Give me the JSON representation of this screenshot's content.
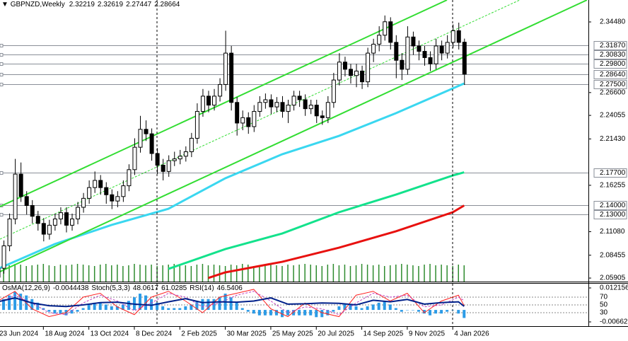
{
  "chart_data": [
    {
      "type": "candlestick",
      "title": "GBPNZD,Weekly",
      "categories": [
        "23 Jun 2024",
        null,
        null,
        null,
        null,
        null,
        null,
        null,
        "18 Aug 2024",
        null,
        null,
        null,
        null,
        null,
        null,
        null,
        "13 Oct 2024",
        null,
        null,
        null,
        null,
        null,
        null,
        null,
        "8 Dec 2024",
        null,
        null,
        null,
        null,
        null,
        null,
        null,
        "2 Feb 2025",
        null,
        null,
        null,
        null,
        null,
        null,
        null,
        "30 Mar 2025",
        null,
        null,
        null,
        null,
        null,
        null,
        null,
        "25 May 2025",
        null,
        null,
        null,
        null,
        null,
        null,
        null,
        "20 Jul 2025",
        null,
        null,
        null,
        null,
        null,
        null,
        null,
        "14 Sep 2025",
        null,
        null,
        null,
        null,
        null,
        null,
        null,
        "9 Nov 2025",
        null,
        null,
        null,
        null,
        null,
        null,
        null,
        "4 Jan 2026",
        null,
        null
      ],
      "open": [
        2.06,
        2.07,
        2.095,
        2.125,
        2.175,
        2.15,
        2.14,
        2.128,
        2.12,
        2.108,
        2.118,
        2.125,
        2.132,
        2.118,
        2.125,
        2.138,
        2.148,
        2.16,
        2.168,
        2.16,
        2.152,
        2.145,
        2.15,
        2.162,
        2.18,
        2.205,
        2.225,
        2.22,
        2.198,
        2.185,
        2.178,
        2.19,
        2.192,
        2.195,
        2.2,
        2.215,
        2.245,
        2.262,
        2.252,
        2.262,
        2.275,
        2.31,
        2.255,
        2.232,
        2.238,
        2.228,
        2.245,
        2.255,
        2.258,
        2.25,
        2.255,
        2.245,
        2.252,
        2.262,
        2.258,
        2.248,
        2.252,
        2.24,
        2.238,
        2.255,
        2.28,
        2.3,
        2.292,
        2.285,
        2.29,
        2.278,
        2.31,
        2.32,
        2.33,
        2.345,
        2.322,
        2.302,
        2.292,
        2.328,
        2.318,
        2.312,
        2.305,
        2.298,
        2.318,
        2.31,
        2.322,
        2.335,
        2.32219
      ],
      "high": [
        2.076,
        2.101,
        2.131,
        2.192,
        2.188,
        2.156,
        2.146,
        2.134,
        2.126,
        2.124,
        2.131,
        2.138,
        2.138,
        2.131,
        2.144,
        2.154,
        2.168,
        2.178,
        2.174,
        2.166,
        2.158,
        2.156,
        2.168,
        2.186,
        2.215,
        2.24,
        2.235,
        2.226,
        2.204,
        2.192,
        2.196,
        2.2,
        2.202,
        2.206,
        2.221,
        2.254,
        2.27,
        2.268,
        2.27,
        2.282,
        2.335,
        2.318,
        2.261,
        2.246,
        2.244,
        2.252,
        2.262,
        2.265,
        2.264,
        2.261,
        2.262,
        2.258,
        2.268,
        2.268,
        2.264,
        2.258,
        2.258,
        2.246,
        2.262,
        2.288,
        2.31,
        2.306,
        2.298,
        2.298,
        2.296,
        2.316,
        2.326,
        2.34,
        2.352,
        2.35,
        2.33,
        2.31,
        2.34,
        2.334,
        2.324,
        2.318,
        2.312,
        2.326,
        2.324,
        2.33,
        2.342,
        2.344,
        2.32619
      ],
      "low": [
        2.054,
        2.064,
        2.089,
        2.119,
        2.144,
        2.13,
        2.12,
        2.112,
        2.1,
        2.102,
        2.112,
        2.119,
        2.11,
        2.112,
        2.119,
        2.132,
        2.142,
        2.154,
        2.152,
        2.142,
        2.136,
        2.138,
        2.144,
        2.156,
        2.174,
        2.199,
        2.212,
        2.19,
        2.175,
        2.168,
        2.172,
        2.184,
        2.186,
        2.189,
        2.194,
        2.209,
        2.239,
        2.244,
        2.246,
        2.256,
        2.268,
        2.246,
        2.218,
        2.224,
        2.22,
        2.222,
        2.239,
        2.248,
        2.242,
        2.244,
        2.238,
        2.232,
        2.246,
        2.25,
        2.24,
        2.242,
        2.232,
        2.23,
        2.232,
        2.249,
        2.274,
        2.284,
        2.276,
        2.272,
        2.27,
        2.272,
        2.3,
        2.312,
        2.324,
        2.314,
        2.282,
        2.28,
        2.286,
        2.308,
        2.302,
        2.296,
        2.29,
        2.292,
        2.302,
        2.304,
        2.316,
        2.314,
        2.27447
      ],
      "close": [
        2.07,
        2.095,
        2.125,
        2.175,
        2.15,
        2.14,
        2.128,
        2.12,
        2.108,
        2.118,
        2.125,
        2.132,
        2.118,
        2.125,
        2.138,
        2.148,
        2.16,
        2.168,
        2.16,
        2.152,
        2.145,
        2.15,
        2.162,
        2.18,
        2.205,
        2.225,
        2.22,
        2.198,
        2.185,
        2.178,
        2.19,
        2.192,
        2.195,
        2.2,
        2.215,
        2.245,
        2.262,
        2.252,
        2.262,
        2.275,
        2.31,
        2.255,
        2.232,
        2.238,
        2.228,
        2.245,
        2.255,
        2.258,
        2.25,
        2.255,
        2.245,
        2.252,
        2.262,
        2.258,
        2.248,
        2.252,
        2.24,
        2.238,
        2.255,
        2.28,
        2.3,
        2.292,
        2.285,
        2.29,
        2.278,
        2.31,
        2.32,
        2.33,
        2.345,
        2.322,
        2.302,
        2.292,
        2.328,
        2.318,
        2.312,
        2.305,
        2.298,
        2.318,
        2.31,
        2.322,
        2.335,
        2.322,
        2.28664
      ],
      "up_color": "#ffffff",
      "down_color": "#000000",
      "ylim": [
        2.05514,
        2.36927
      ],
      "yticks": [
        {
          "value": 2.3448,
          "label": "2.34480"
        },
        {
          "value": 2.266,
          "label": "2.26600"
        },
        2.24055,
        {
          "value": 2.2143,
          "label": "2.21430"
        },
        2.16255,
        {
          "value": 2.1108,
          "label": "2.11080"
        },
        2.08455,
        2.05905
      ],
      "levels": [
        {
          "value": 2.3187,
          "label": "2.31870"
        },
        {
          "value": 2.3083,
          "label": "2.30830"
        },
        {
          "value": 2.298,
          "label": "2.29800"
        },
        {
          "value": 2.2864,
          "label": "2.28640"
        },
        {
          "value": 2.275,
          "label": "2.27500"
        },
        {
          "value": 2.177,
          "label": "2.17700"
        },
        {
          "value": 2.14,
          "label": "2.14000"
        },
        {
          "value": 2.13,
          "label": "2.13000"
        }
      ],
      "level_color": "#8a8f98",
      "moving_averages": [
        {
          "color": "#3ad7f0",
          "x": [
            0,
            10,
            20,
            30,
            40,
            50,
            60,
            70,
            80,
            82
          ],
          "values": [
            2.0693,
            2.097,
            2.1183,
            2.1364,
            2.1704,
            2.1972,
            2.2177,
            2.243,
            2.2706,
            2.2761
          ]
        },
        {
          "color": "#13e28c",
          "x": [
            30,
            40,
            50,
            60,
            70,
            80,
            82
          ],
          "values": [
            2.0693,
            2.0914,
            2.1088,
            2.1325,
            2.1522,
            2.1735,
            2.177
          ]
        },
        {
          "color": "#e8110f",
          "x": [
            37,
            40,
            50,
            60,
            70,
            80,
            82
          ],
          "values": [
            2.0591,
            2.0654,
            2.0772,
            2.093,
            2.1112,
            2.1325,
            2.14
          ]
        }
      ],
      "volume": [
        22,
        24,
        23,
        25,
        24,
        22,
        23,
        24,
        25,
        23,
        22,
        24,
        23,
        24,
        25,
        24,
        23,
        22,
        24,
        25,
        23,
        24,
        22,
        23,
        25,
        24,
        23,
        24,
        22,
        23,
        24,
        25,
        24,
        23,
        22,
        24,
        25,
        23,
        24,
        23,
        22,
        24,
        23,
        25,
        24,
        22,
        23,
        24,
        25,
        23,
        22,
        24,
        23,
        24,
        25,
        24,
        23,
        22,
        24,
        25,
        23,
        24,
        22,
        23,
        25,
        24,
        23,
        24,
        22,
        23,
        24,
        25,
        24,
        23,
        22,
        24,
        25,
        23,
        24,
        23,
        22,
        24,
        23
      ],
      "volume_color": "#2e8b2e",
      "volume_lim": [
        0,
        100
      ]
    },
    {
      "type": "oscillator",
      "osma_label": "OsMA(12,26,9)",
      "osma": [
        0.004,
        0.006,
        0.008,
        0.01,
        0.009,
        0.008,
        0.006,
        0.004,
        0.001,
        -0.001,
        -0.002,
        -0.002,
        -0.003,
        -0.002,
        -0.001,
        0.001,
        0.003,
        0.004,
        0.004,
        0.003,
        0.002,
        0.002,
        0.003,
        0.005,
        0.007,
        0.009,
        0.008,
        0.006,
        0.004,
        0.002,
        0.001,
        0.001,
        0.001,
        0.002,
        0.003,
        0.005,
        0.006,
        0.006,
        0.006,
        0.007,
        0.009,
        0.007,
        0.004,
        0.001,
        -0.001,
        -0.002,
        -0.003,
        -0.003,
        -0.003,
        -0.003,
        -0.004,
        -0.003,
        -0.003,
        -0.003,
        -0.003,
        -0.003,
        -0.004,
        -0.004,
        -0.003,
        -0.001,
        0.002,
        0.003,
        0.003,
        0.002,
        0.001,
        0.002,
        0.003,
        0.004,
        0.005,
        0.003,
        0.001,
        -0.001,
        0,
        0,
        -0.001,
        -0.002,
        -0.003,
        -0.002,
        -0.002,
        -0.001,
        0,
        -0.002,
        -0.0044438
      ],
      "osma_color": "#2c9be6",
      "osma_lim": [
        -0.008972,
        0.014503
      ],
      "osma_ticks": [
        0.012156,
        -0.006625
      ],
      "stoch_label": "Stoch(5,3,3)",
      "rsi_label": "RSI(14)",
      "osc_x": [
        0,
        3,
        6,
        9,
        12,
        15,
        18,
        21,
        24,
        27,
        30,
        33,
        36,
        39,
        42,
        45,
        48,
        51,
        54,
        57,
        60,
        63,
        66,
        69,
        72,
        75,
        78,
        81,
        82
      ],
      "stoch_main": [
        60,
        85,
        40,
        20,
        30,
        70,
        80,
        45,
        25,
        70,
        85,
        60,
        30,
        70,
        80,
        90,
        40,
        20,
        55,
        30,
        20,
        75,
        85,
        60,
        80,
        30,
        60,
        75,
        48.0617
      ],
      "stoch_signal": [
        55,
        75,
        55,
        30,
        25,
        55,
        75,
        60,
        35,
        55,
        80,
        70,
        45,
        55,
        75,
        85,
        60,
        30,
        45,
        40,
        25,
        55,
        80,
        70,
        75,
        45,
        50,
        70,
        61.0285
      ],
      "rsi": [
        58,
        68,
        55,
        48,
        46,
        50,
        56,
        57,
        52,
        49,
        58,
        66,
        56,
        58,
        57,
        60,
        68,
        52,
        53,
        55,
        54,
        50,
        62,
        58,
        64,
        52,
        56,
        58,
        46.5406
      ],
      "stoch_main_color": "#ff2020",
      "stoch_signal_color": "#c040c0",
      "rsi_color": "#00208a",
      "osc_lim": [
        -4.5,
        104.5
      ],
      "levels": [
        70,
        50,
        30
      ]
    }
  ]
}
